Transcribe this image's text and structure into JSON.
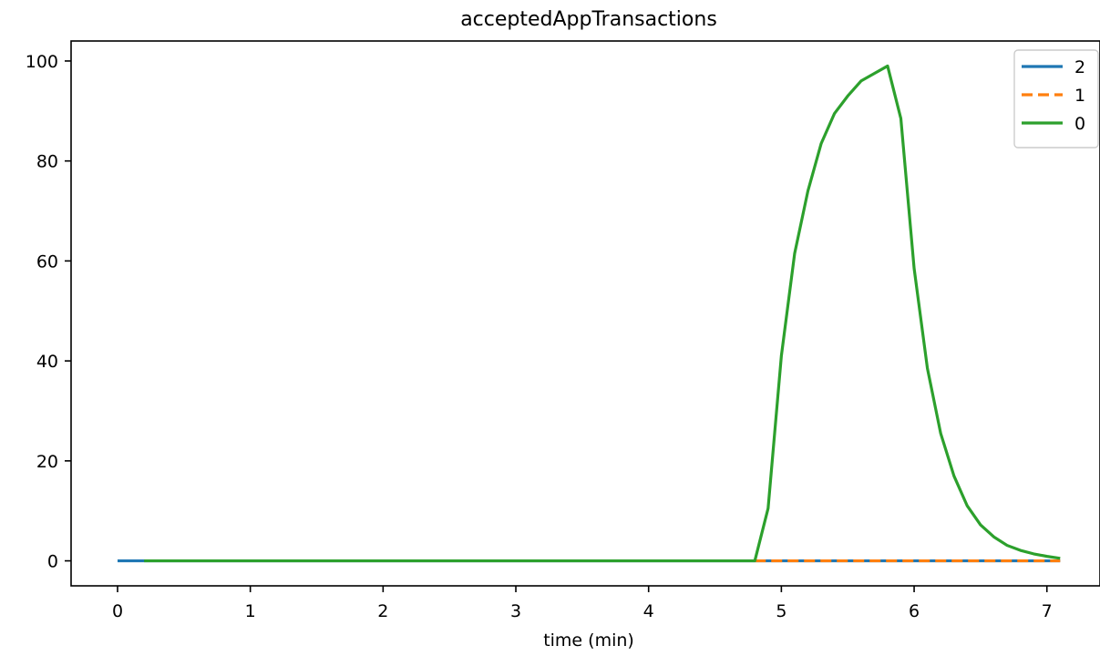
{
  "chart_data": {
    "type": "line",
    "title": "acceptedAppTransactions",
    "xlabel": "time (min)",
    "ylabel": "",
    "xlim": [
      -0.35,
      7.4
    ],
    "ylim": [
      -5,
      104
    ],
    "xticks": [
      0,
      1,
      2,
      3,
      4,
      5,
      6,
      7
    ],
    "yticks": [
      0,
      20,
      40,
      60,
      80,
      100
    ],
    "grid": false,
    "legend_position": "top-right",
    "series": [
      {
        "name": "2",
        "color": "#1f77b4",
        "dash": "solid",
        "x": [
          0,
          0.5,
          1,
          1.5,
          2,
          2.5,
          3,
          3.5,
          4,
          4.5,
          4.8,
          5,
          5.5,
          6,
          6.5,
          7,
          7.1
        ],
        "y": [
          0,
          0,
          0,
          0,
          0,
          0,
          0,
          0,
          0,
          0,
          0,
          0,
          0,
          0,
          0,
          0,
          0
        ]
      },
      {
        "name": "1",
        "color": "#ff7f0e",
        "dash": "dashed",
        "x": [
          4.8,
          5,
          5.5,
          6,
          6.5,
          7,
          7.1
        ],
        "y": [
          0,
          0,
          0,
          0,
          0,
          0,
          0
        ]
      },
      {
        "name": "0",
        "color": "#2ca02c",
        "dash": "solid",
        "x": [
          0.2,
          0.5,
          1,
          1.5,
          2,
          2.5,
          3,
          3.5,
          4,
          4.5,
          4.8,
          4.9,
          5.0,
          5.1,
          5.2,
          5.3,
          5.4,
          5.5,
          5.6,
          5.7,
          5.8,
          5.9,
          6.0,
          6.1,
          6.2,
          6.3,
          6.4,
          6.5,
          6.6,
          6.7,
          6.8,
          6.9,
          7.0,
          7.1
        ],
        "y": [
          0,
          0,
          0,
          0,
          0,
          0,
          0,
          0,
          0,
          0,
          0,
          10.5,
          41,
          61.5,
          74,
          83.5,
          89.5,
          93,
          96,
          97.5,
          99,
          88.5,
          58.5,
          38.5,
          25.5,
          17,
          11,
          7.2,
          4.8,
          3.1,
          2.1,
          1.4,
          0.9,
          0.5
        ]
      }
    ]
  }
}
